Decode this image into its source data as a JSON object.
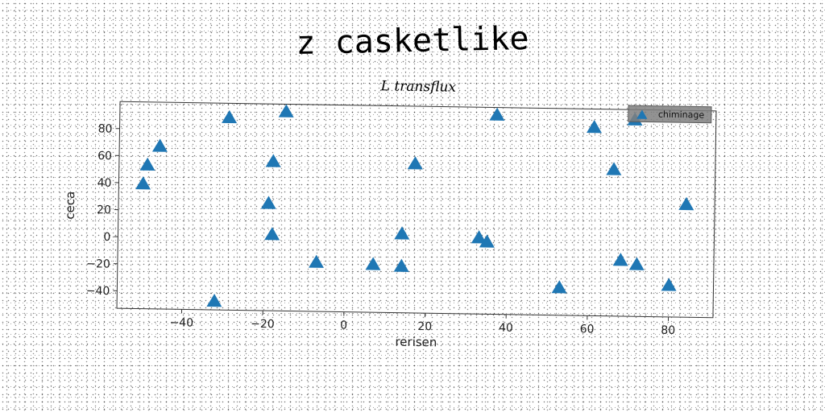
{
  "title": "z casketlike",
  "chart_data": {
    "type": "scatter",
    "subtitle": "L transflux",
    "xlabel": "rerisen",
    "ylabel": "ceca",
    "xlim": [
      -56,
      91
    ],
    "ylim": [
      -53,
      100
    ],
    "xticks": [
      -40,
      -20,
      0,
      20,
      40,
      60,
      80
    ],
    "yticks": [
      -40,
      -20,
      0,
      20,
      40,
      60,
      80
    ],
    "xtick_labels": [
      "−40",
      "−20",
      "0",
      "20",
      "40",
      "60",
      "80"
    ],
    "ytick_labels": [
      "−40",
      "−20",
      "0",
      "20",
      "40",
      "60",
      "80"
    ],
    "grid": false,
    "legend_position": "top-right",
    "series": [
      {
        "name": "chiminage",
        "color": "#1f77b4",
        "marker": "triangle",
        "points": [
          [
            -50,
            39
          ],
          [
            -49,
            53
          ],
          [
            -46,
            67
          ],
          [
            -29,
            89
          ],
          [
            -15,
            94
          ],
          [
            -18,
            57
          ],
          [
            -19,
            26
          ],
          [
            -18,
            3
          ],
          [
            -32,
            -47
          ],
          [
            -7,
            -17
          ],
          [
            7,
            -18
          ],
          [
            14,
            5
          ],
          [
            14,
            -19
          ],
          [
            17,
            57
          ],
          [
            33,
            3
          ],
          [
            35,
            0
          ],
          [
            37,
            94
          ],
          [
            53,
            -33
          ],
          [
            61,
            86
          ],
          [
            66,
            55
          ],
          [
            68,
            -12
          ],
          [
            71,
            92
          ],
          [
            72,
            -15
          ],
          [
            80,
            -30
          ],
          [
            84,
            30
          ]
        ]
      }
    ]
  }
}
